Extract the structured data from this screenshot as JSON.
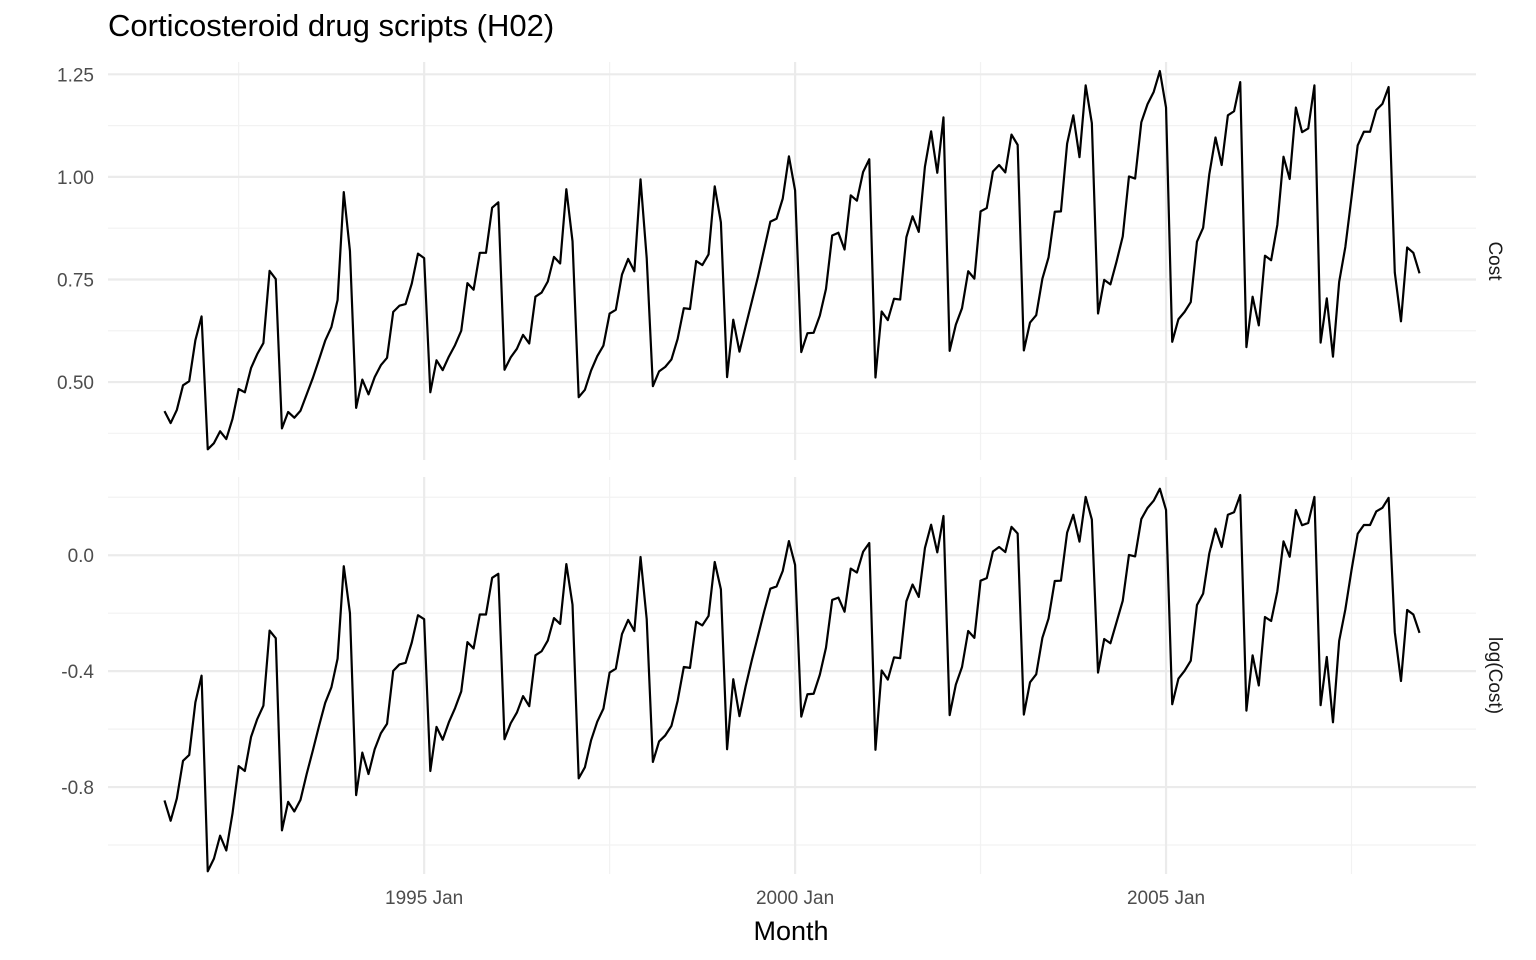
{
  "chart_data": {
    "type": "line",
    "title": "Corticosteroid drug scripts (H02)",
    "xlabel": "Month",
    "x_ticks": [
      "1995 Jan",
      "2000 Jan",
      "2005 Jan"
    ],
    "x_start": "1991 Jul",
    "x_end": "2008 Jun",
    "facets": [
      {
        "strip_label": "Cost",
        "ylim": [
          0.31,
          1.28
        ],
        "y_ticks": [
          "0.50",
          "0.75",
          "1.00",
          "1.25"
        ],
        "values": [
          0.429,
          0.4,
          0.432,
          0.492,
          0.502,
          0.602,
          0.66,
          0.336,
          0.351,
          0.38,
          0.361,
          0.41,
          0.483,
          0.475,
          0.534,
          0.568,
          0.595,
          0.771,
          0.751,
          0.387,
          0.427,
          0.413,
          0.43,
          0.47,
          0.51,
          0.555,
          0.601,
          0.634,
          0.7,
          0.963,
          0.819,
          0.437,
          0.506,
          0.47,
          0.512,
          0.541,
          0.559,
          0.671,
          0.686,
          0.69,
          0.74,
          0.813,
          0.802,
          0.475,
          0.553,
          0.529,
          0.562,
          0.59,
          0.625,
          0.741,
          0.725,
          0.815,
          0.815,
          0.925,
          0.938,
          0.53,
          0.56,
          0.581,
          0.615,
          0.594,
          0.708,
          0.718,
          0.745,
          0.805,
          0.789,
          0.97,
          0.843,
          0.463,
          0.481,
          0.528,
          0.563,
          0.589,
          0.667,
          0.676,
          0.762,
          0.8,
          0.77,
          0.994,
          0.802,
          0.49,
          0.526,
          0.537,
          0.555,
          0.605,
          0.68,
          0.678,
          0.795,
          0.785,
          0.811,
          0.977,
          0.889,
          0.512,
          0.652,
          0.574,
          0.636,
          0.696,
          0.757,
          0.824,
          0.891,
          0.898,
          0.947,
          1.05,
          0.967,
          0.573,
          0.619,
          0.62,
          0.662,
          0.727,
          0.857,
          0.864,
          0.823,
          0.955,
          0.942,
          1.012,
          1.043,
          0.511,
          0.672,
          0.651,
          0.703,
          0.701,
          0.853,
          0.904,
          0.866,
          1.025,
          1.111,
          1.01,
          1.145,
          0.576,
          0.64,
          0.68,
          0.77,
          0.752,
          0.916,
          0.924,
          1.013,
          1.029,
          1.011,
          1.103,
          1.078,
          0.577,
          0.645,
          0.663,
          0.752,
          0.804,
          0.915,
          0.916,
          1.081,
          1.15,
          1.048,
          1.223,
          1.131,
          0.667,
          0.749,
          0.738,
          0.794,
          0.855,
          1.001,
          0.996,
          1.133,
          1.177,
          1.207,
          1.258,
          1.169,
          0.598,
          0.653,
          0.671,
          0.695,
          0.842,
          0.876,
          1.007,
          1.096,
          1.029,
          1.15,
          1.16,
          1.231,
          0.585,
          0.708,
          0.638,
          0.808,
          0.797,
          0.883,
          1.049,
          0.995,
          1.169,
          1.109,
          1.118,
          1.223,
          0.596,
          0.704,
          0.562,
          0.744,
          0.829,
          0.95,
          1.077,
          1.11,
          1.11,
          1.163,
          1.178,
          1.219,
          0.767,
          0.648,
          0.828,
          0.815,
          0.765
        ]
      },
      {
        "strip_label": "log(Cost)",
        "ylim": [
          -1.1,
          0.27
        ],
        "y_ticks": [
          "-0.8",
          "-0.4",
          "0.0"
        ]
      }
    ]
  }
}
